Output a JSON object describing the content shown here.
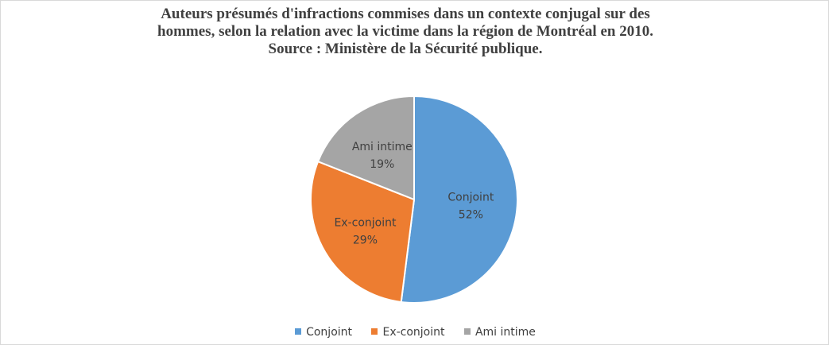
{
  "title_lines": [
    "Auteurs présumés d'infractions commises dans un contexte conjugal sur des",
    "hommes, selon la relation avec la victime dans la région de Montréal en 2010.",
    "Source : Ministère de la Sécurité publique."
  ],
  "chart_data": {
    "type": "pie",
    "title": "Auteurs présumés d'infractions commises dans un contexte conjugal sur des hommes, selon la relation avec la victime dans la région de Montréal en 2010. Source : Ministère de la Sécurité publique.",
    "categories": [
      "Conjoint",
      "Ex-conjoint",
      "Ami intime"
    ],
    "values": [
      52,
      29,
      19
    ],
    "data_labels": [
      "52%",
      "29%",
      "19%"
    ],
    "colors": [
      "#5b9bd5",
      "#ed7d31",
      "#a5a5a5"
    ],
    "legend_position": "bottom"
  }
}
